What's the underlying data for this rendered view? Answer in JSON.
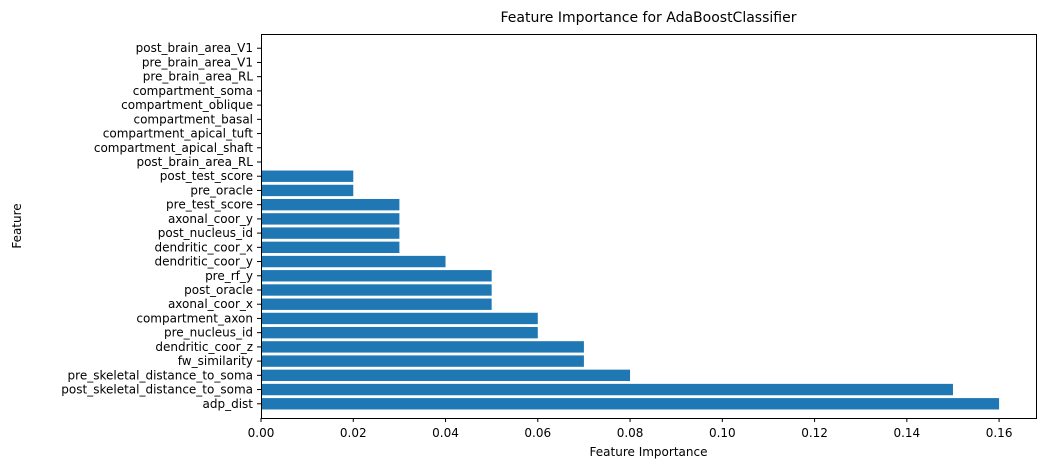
{
  "chart_data": {
    "type": "bar",
    "orientation": "horizontal",
    "title": "Feature Importance for AdaBoostClassifier",
    "xlabel": "Feature Importance",
    "ylabel": "Feature",
    "xlim": [
      0,
      0.168
    ],
    "xticks": [
      0.0,
      0.02,
      0.04,
      0.06,
      0.08,
      0.1,
      0.12,
      0.14,
      0.16
    ],
    "xtick_labels": [
      "0.00",
      "0.02",
      "0.04",
      "0.06",
      "0.08",
      "0.10",
      "0.12",
      "0.14",
      "0.16"
    ],
    "grid": false,
    "bar_color": "#1f77b4",
    "categories": [
      "adp_dist",
      "post_skeletal_distance_to_soma",
      "pre_skeletal_distance_to_soma",
      "fw_similarity",
      "dendritic_coor_z",
      "pre_nucleus_id",
      "compartment_axon",
      "axonal_coor_x",
      "post_oracle",
      "pre_rf_y",
      "dendritic_coor_y",
      "dendritic_coor_x",
      "post_nucleus_id",
      "axonal_coor_y",
      "pre_test_score",
      "pre_oracle",
      "post_test_score",
      "post_brain_area_RL",
      "compartment_apical_shaft",
      "compartment_apical_tuft",
      "compartment_basal",
      "compartment_oblique",
      "compartment_soma",
      "pre_brain_area_RL",
      "pre_brain_area_V1",
      "post_brain_area_V1"
    ],
    "values": [
      0.16,
      0.15,
      0.08,
      0.07,
      0.07,
      0.06,
      0.06,
      0.05,
      0.05,
      0.05,
      0.04,
      0.03,
      0.03,
      0.03,
      0.03,
      0.02,
      0.02,
      0,
      0,
      0,
      0,
      0,
      0,
      0,
      0,
      0
    ]
  }
}
